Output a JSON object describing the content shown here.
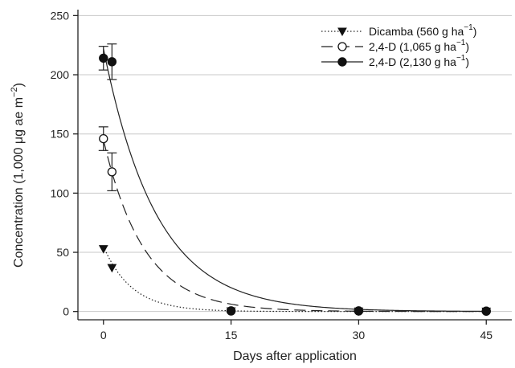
{
  "chart_data": {
    "type": "scatter",
    "xlabel": "Days after application",
    "ylabel_main": "Concentration (1,000 ",
    "ylabel_mu": "μ",
    "ylabel_rest": "g ae m",
    "ylabel_sup": "−2",
    "ylabel_close": ")",
    "xlim": [
      -3,
      48
    ],
    "ylim": [
      -7,
      255
    ],
    "xticks": [
      0,
      15,
      30,
      45
    ],
    "yticks": [
      0,
      50,
      100,
      150,
      200,
      250
    ],
    "grid": "horizontal",
    "legend_position": "top-right",
    "series": [
      {
        "name": "Dicamba (560 g ha",
        "name_sup": "−1",
        "name_close": ")",
        "marker": "triangle-down",
        "line": "dotted",
        "points": [
          {
            "x": 0,
            "y": 53,
            "err": 0
          },
          {
            "x": 1,
            "y": 37,
            "err": 0
          },
          {
            "x": 15,
            "y": 0.5,
            "err": 0
          },
          {
            "x": 30,
            "y": 0.3,
            "err": 0
          },
          {
            "x": 45,
            "y": 0.2,
            "err": 0
          }
        ],
        "fit": {
          "a": 55,
          "k": 0.3
        }
      },
      {
        "name": "2,4-D (1,065 g ha",
        "name_sup": "−1",
        "name_close": ")",
        "marker": "circle-open",
        "line": "dashed",
        "points": [
          {
            "x": 0,
            "y": 146,
            "err": 10
          },
          {
            "x": 1,
            "y": 118,
            "err": 16
          },
          {
            "x": 15,
            "y": 0.5,
            "err": 0
          },
          {
            "x": 30,
            "y": 0.5,
            "err": 0
          },
          {
            "x": 45,
            "y": 0.3,
            "err": 0
          }
        ],
        "fit": {
          "a": 145,
          "k": 0.21
        }
      },
      {
        "name": "2,4-D (2,130 g ha",
        "name_sup": "−1",
        "name_close": ")",
        "marker": "circle-filled",
        "line": "solid",
        "points": [
          {
            "x": 0,
            "y": 214,
            "err": 10
          },
          {
            "x": 1,
            "y": 211,
            "err": 15
          },
          {
            "x": 15,
            "y": 0.5,
            "err": 0
          },
          {
            "x": 30,
            "y": 0.5,
            "err": 0
          },
          {
            "x": 45,
            "y": 0.3,
            "err": 0
          }
        ],
        "fit": {
          "a": 222,
          "k": 0.16
        }
      }
    ]
  }
}
